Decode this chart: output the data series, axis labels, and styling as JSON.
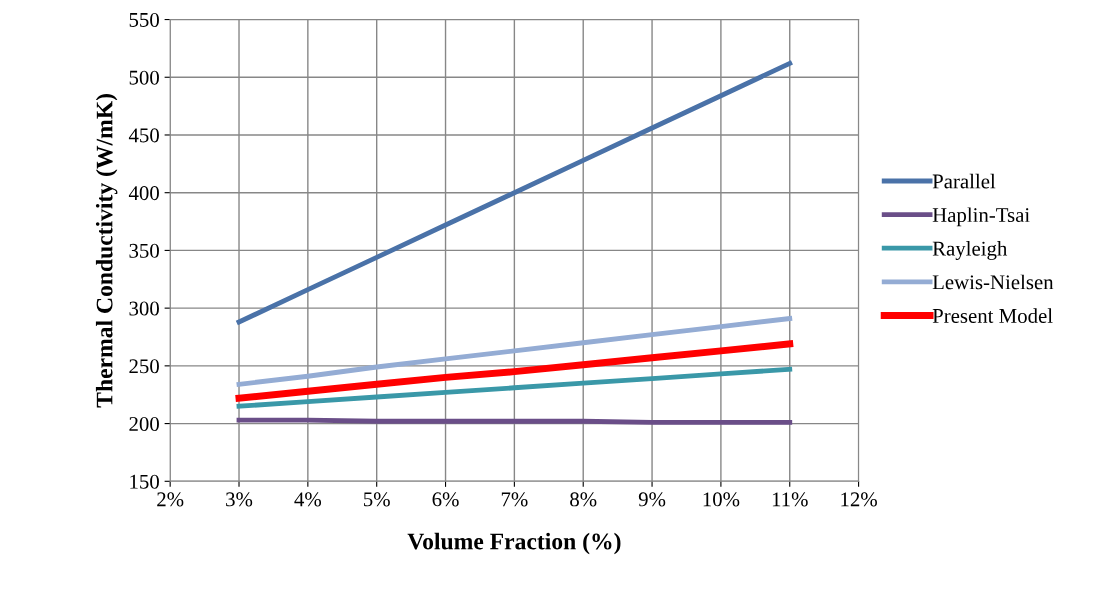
{
  "chart_data": {
    "type": "line",
    "xlabel": "Volume Fraction (%)",
    "ylabel": "Thermal Conductivity (W/mK)",
    "x": [
      3,
      4,
      5,
      6,
      7,
      8,
      9,
      10,
      11
    ],
    "series": [
      {
        "name": "Parallel",
        "color": "#4a72a8",
        "values": [
          288,
          316,
          344,
          372,
          400,
          428,
          456,
          484,
          512
        ]
      },
      {
        "name": "Haplin-Tsai",
        "color": "#6a4e88",
        "values": [
          203,
          203,
          202,
          202,
          202,
          202,
          201,
          201,
          201
        ]
      },
      {
        "name": "Rayleigh",
        "color": "#3a98a8",
        "values": [
          215,
          219,
          223,
          227,
          231,
          235,
          239,
          243,
          247
        ]
      },
      {
        "name": "Lewis-Nielsen",
        "color": "#94acd4",
        "values": [
          234,
          241,
          249,
          256,
          263,
          270,
          277,
          284,
          291
        ]
      },
      {
        "name": "Present Model",
        "color": "#ff0000",
        "values": [
          222,
          228,
          234,
          240,
          245,
          251,
          257,
          263,
          269
        ]
      }
    ],
    "xlim": [
      2,
      12
    ],
    "xticks": [
      {
        "value": 2,
        "label": "2%"
      },
      {
        "value": 3,
        "label": "3%"
      },
      {
        "value": 4,
        "label": "4%"
      },
      {
        "value": 5,
        "label": "5%"
      },
      {
        "value": 6,
        "label": "6%"
      },
      {
        "value": 7,
        "label": "7%"
      },
      {
        "value": 8,
        "label": "8%"
      },
      {
        "value": 9,
        "label": "9%"
      },
      {
        "value": 10,
        "label": "10%"
      },
      {
        "value": 11,
        "label": "11%"
      },
      {
        "value": 12,
        "label": "12%"
      }
    ],
    "ylim": [
      150,
      550
    ],
    "yticks": [
      150,
      200,
      250,
      300,
      350,
      400,
      450,
      500,
      550
    ],
    "grid": true,
    "legend": "right",
    "marker": "none",
    "line_style": "solid"
  }
}
